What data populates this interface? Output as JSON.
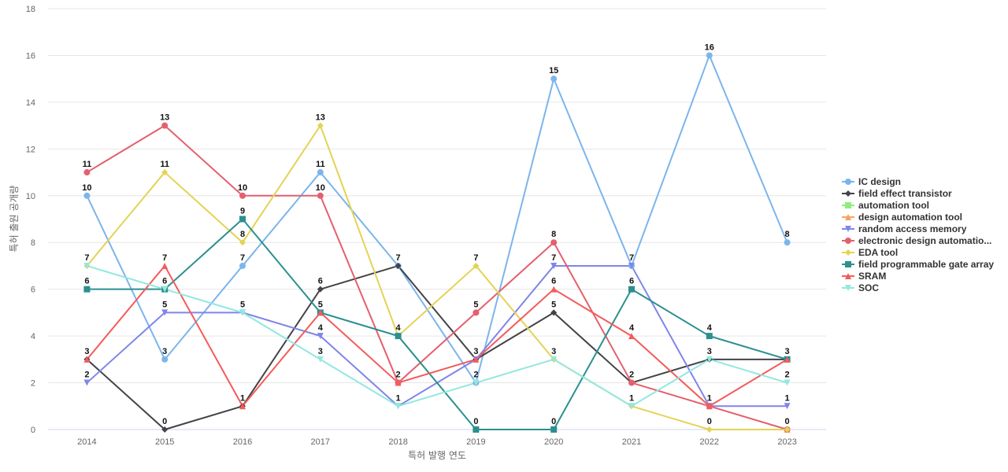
{
  "chart_data": {
    "type": "line",
    "title": "",
    "xlabel": "특허 발행 연도",
    "ylabel": "특허 출원 공개량",
    "x": [
      "2014",
      "2015",
      "2016",
      "2017",
      "2018",
      "2019",
      "2020",
      "2021",
      "2022",
      "2023"
    ],
    "ylim": [
      0,
      18
    ],
    "yticks": [
      0,
      2,
      4,
      6,
      8,
      10,
      12,
      14,
      16,
      18
    ],
    "grid": true,
    "legend_position": "right",
    "series": [
      {
        "name": "IC design",
        "color": "#7cb5ec",
        "marker": "circle",
        "values": [
          10,
          3,
          7,
          11,
          7,
          2,
          15,
          7,
          16,
          8
        ]
      },
      {
        "name": "field effect transistor",
        "color": "#434348",
        "marker": "diamond",
        "values": [
          3,
          0,
          1,
          6,
          7,
          3,
          5,
          2,
          3,
          3
        ]
      },
      {
        "name": "automation tool",
        "color": "#90ed7d",
        "marker": "square",
        "values": [
          null,
          null,
          null,
          null,
          null,
          null,
          null,
          null,
          null,
          null
        ]
      },
      {
        "name": "design automation tool",
        "color": "#f7a35c",
        "marker": "triangle",
        "values": [
          null,
          null,
          null,
          null,
          null,
          null,
          null,
          null,
          null,
          0
        ]
      },
      {
        "name": "random access memory",
        "color": "#8085e9",
        "marker": "triangle-down",
        "values": [
          2,
          5,
          5,
          4,
          1,
          3,
          7,
          7,
          1,
          1
        ]
      },
      {
        "name": "electronic design automatio...",
        "color": "#e4606d",
        "marker": "circle",
        "values": [
          11,
          13,
          10,
          10,
          2,
          5,
          8,
          2,
          1,
          0
        ]
      },
      {
        "name": "EDA tool",
        "color": "#e4d354",
        "marker": "diamond",
        "values": [
          7,
          11,
          8,
          13,
          4,
          7,
          3,
          1,
          0,
          0
        ]
      },
      {
        "name": "field programmable gate array",
        "color": "#2b908f",
        "marker": "square",
        "values": [
          6,
          6,
          9,
          5,
          4,
          0,
          0,
          6,
          4,
          3
        ]
      },
      {
        "name": "SRAM",
        "color": "#f45b5b",
        "marker": "triangle",
        "values": [
          3,
          7,
          1,
          5,
          2,
          3,
          6,
          4,
          1,
          3
        ]
      },
      {
        "name": "SOC",
        "color": "#91e8e1",
        "marker": "triangle-down",
        "values": [
          7,
          6,
          5,
          3,
          1,
          2,
          3,
          1,
          3,
          2
        ]
      }
    ],
    "data_labels": [
      {
        "x": "2014",
        "y": 11,
        "text": "11"
      },
      {
        "x": "2014",
        "y": 10,
        "text": "10"
      },
      {
        "x": "2014",
        "y": 7,
        "text": "7"
      },
      {
        "x": "2014",
        "y": 6,
        "text": "6"
      },
      {
        "x": "2014",
        "y": 3,
        "text": "3"
      },
      {
        "x": "2014",
        "y": 2,
        "text": "2"
      },
      {
        "x": "2015",
        "y": 13,
        "text": "13"
      },
      {
        "x": "2015",
        "y": 11,
        "text": "11"
      },
      {
        "x": "2015",
        "y": 7,
        "text": "7"
      },
      {
        "x": "2015",
        "y": 6,
        "text": "6"
      },
      {
        "x": "2015",
        "y": 5,
        "text": "5"
      },
      {
        "x": "2015",
        "y": 3,
        "text": "3"
      },
      {
        "x": "2015",
        "y": 0,
        "text": "0"
      },
      {
        "x": "2016",
        "y": 10,
        "text": "10"
      },
      {
        "x": "2016",
        "y": 9,
        "text": "9"
      },
      {
        "x": "2016",
        "y": 8,
        "text": "8"
      },
      {
        "x": "2016",
        "y": 7,
        "text": "7"
      },
      {
        "x": "2016",
        "y": 5,
        "text": "5"
      },
      {
        "x": "2016",
        "y": 1,
        "text": "1"
      },
      {
        "x": "2017",
        "y": 13,
        "text": "13"
      },
      {
        "x": "2017",
        "y": 11,
        "text": "11"
      },
      {
        "x": "2017",
        "y": 10,
        "text": "10"
      },
      {
        "x": "2017",
        "y": 6,
        "text": "6"
      },
      {
        "x": "2017",
        "y": 5,
        "text": "5"
      },
      {
        "x": "2017",
        "y": 4,
        "text": "4"
      },
      {
        "x": "2017",
        "y": 3,
        "text": "3"
      },
      {
        "x": "2018",
        "y": 7,
        "text": "7"
      },
      {
        "x": "2018",
        "y": 4,
        "text": "4"
      },
      {
        "x": "2018",
        "y": 2,
        "text": "2"
      },
      {
        "x": "2018",
        "y": 1,
        "text": "1"
      },
      {
        "x": "2019",
        "y": 7,
        "text": "7"
      },
      {
        "x": "2019",
        "y": 5,
        "text": "5"
      },
      {
        "x": "2019",
        "y": 3,
        "text": "3"
      },
      {
        "x": "2019",
        "y": 2,
        "text": "2"
      },
      {
        "x": "2019",
        "y": 0,
        "text": "0"
      },
      {
        "x": "2020",
        "y": 15,
        "text": "15"
      },
      {
        "x": "2020",
        "y": 8,
        "text": "8"
      },
      {
        "x": "2020",
        "y": 7,
        "text": "7"
      },
      {
        "x": "2020",
        "y": 6,
        "text": "6"
      },
      {
        "x": "2020",
        "y": 5,
        "text": "5"
      },
      {
        "x": "2020",
        "y": 3,
        "text": "3"
      },
      {
        "x": "2020",
        "y": 0,
        "text": "0"
      },
      {
        "x": "2021",
        "y": 7,
        "text": "7"
      },
      {
        "x": "2021",
        "y": 6,
        "text": "6"
      },
      {
        "x": "2021",
        "y": 4,
        "text": "4"
      },
      {
        "x": "2021",
        "y": 2,
        "text": "2"
      },
      {
        "x": "2021",
        "y": 1,
        "text": "1"
      },
      {
        "x": "2022",
        "y": 16,
        "text": "16"
      },
      {
        "x": "2022",
        "y": 4,
        "text": "4"
      },
      {
        "x": "2022",
        "y": 3,
        "text": "3"
      },
      {
        "x": "2022",
        "y": 1,
        "text": "1"
      },
      {
        "x": "2022",
        "y": 0,
        "text": "0"
      },
      {
        "x": "2023",
        "y": 8,
        "text": "8"
      },
      {
        "x": "2023",
        "y": 3,
        "text": "3"
      },
      {
        "x": "2023",
        "y": 2,
        "text": "2"
      },
      {
        "x": "2023",
        "y": 1,
        "text": "1"
      },
      {
        "x": "2023",
        "y": 0,
        "text": "0"
      }
    ]
  }
}
